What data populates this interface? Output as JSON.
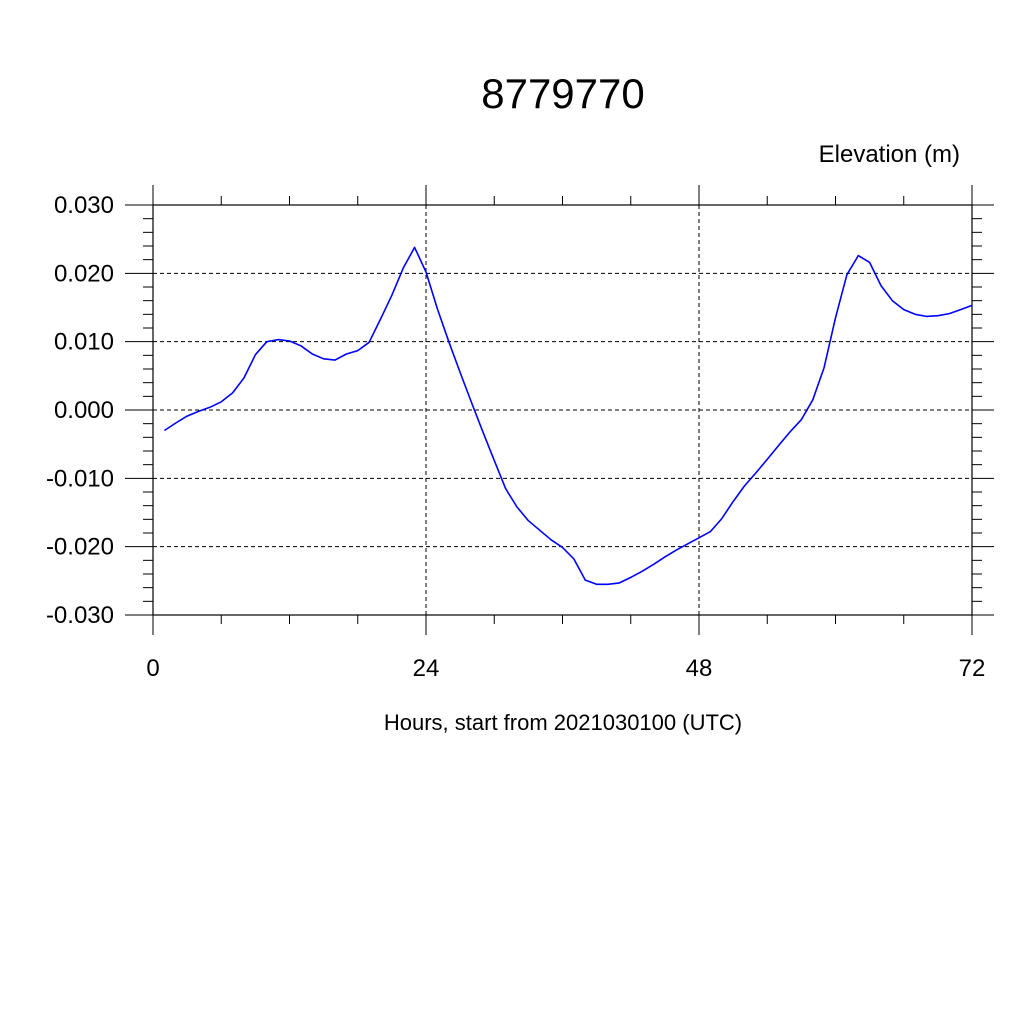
{
  "chart_data": {
    "type": "line",
    "title": "8779770",
    "ylabel": "Elevation (m)",
    "xlabel": "Hours, start from 2021030100 (UTC)",
    "xlim": [
      0,
      72
    ],
    "ylim": [
      -0.03,
      0.03
    ],
    "x_ticks": [
      0,
      24,
      48,
      72
    ],
    "x_tick_labels": [
      "0",
      "24",
      "48",
      "72"
    ],
    "y_ticks": [
      -0.03,
      -0.02,
      -0.01,
      0.0,
      0.01,
      0.02,
      0.03
    ],
    "y_tick_labels": [
      "-0.030",
      "-0.020",
      "-0.010",
      "0.000",
      "0.010",
      "0.020",
      "0.030"
    ],
    "grid": true,
    "line_color": "#0000ff",
    "series": [
      {
        "x": [
          1,
          2,
          3,
          4,
          5,
          6,
          7,
          8,
          9,
          10,
          11,
          12,
          13,
          14,
          15,
          16,
          17,
          18,
          19,
          20,
          21,
          22,
          23,
          24,
          25,
          26,
          27,
          28,
          29,
          30,
          31,
          32,
          33,
          34,
          35,
          36,
          37,
          38,
          39,
          40,
          41,
          42,
          43,
          44,
          45,
          46,
          47,
          48,
          49,
          50,
          51,
          52,
          53,
          54,
          55,
          56,
          57,
          58,
          59,
          60,
          61,
          62,
          63,
          64,
          65,
          66,
          67,
          68,
          69,
          70,
          71,
          72
        ],
        "values": [
          -0.003,
          -0.0019,
          -0.0009,
          -0.0002,
          0.0004,
          0.0012,
          0.0025,
          0.0047,
          0.0081,
          0.01,
          0.0103,
          0.0101,
          0.0094,
          0.0082,
          0.0075,
          0.0073,
          0.0082,
          0.0087,
          0.0099,
          0.0133,
          0.0168,
          0.0208,
          0.0238,
          0.0202,
          0.0148,
          0.01,
          0.0055,
          0.0011,
          -0.0032,
          -0.0074,
          -0.0115,
          -0.0142,
          -0.0162,
          -0.0176,
          -0.019,
          -0.0201,
          -0.0218,
          -0.0249,
          -0.0255,
          -0.0255,
          -0.0253,
          -0.0245,
          -0.0236,
          -0.0226,
          -0.0215,
          -0.0205,
          -0.0196,
          -0.0187,
          -0.0178,
          -0.0159,
          -0.0134,
          -0.0111,
          -0.0092,
          -0.0072,
          -0.0052,
          -0.0032,
          -0.0014,
          0.0015,
          0.0062,
          0.0135,
          0.0198,
          0.0226,
          0.0216,
          0.0182,
          0.016,
          0.0147,
          0.014,
          0.0137,
          0.0138,
          0.0141,
          0.0147,
          0.0153
        ]
      }
    ]
  }
}
